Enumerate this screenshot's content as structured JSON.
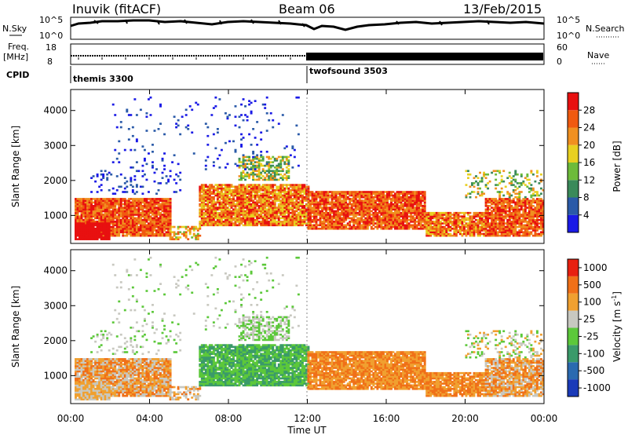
{
  "header": {
    "station": "Inuvik (fitACF)",
    "beam": "Beam 06",
    "date": "13/Feb/2015"
  },
  "strips": {
    "nsky_label": "N.Sky",
    "nsky_ticks": [
      "10^5",
      "10^0"
    ],
    "nsearch_label": "N.Search",
    "nsearch_ticks": [
      "10^5",
      "10^0"
    ],
    "freq_label": "Freq.",
    "freq_unit": "[MHz]",
    "freq_ticks": [
      "18",
      "8"
    ],
    "nave_label": "Nave",
    "nave_ticks": [
      "60",
      "0"
    ],
    "cpid_label": "CPID",
    "cpid_segments": [
      {
        "name": "themis 3300",
        "start_hour": 0
      },
      {
        "name": "twofsound 3503",
        "start_hour": 12
      }
    ]
  },
  "chart_data": [
    {
      "type": "heatmap",
      "title": "",
      "ylabel": "Slant Range [km]",
      "xlabel": "",
      "xlim_hours": [
        0,
        24
      ],
      "ylim": [
        200,
        4600
      ],
      "yticks": [
        "1000",
        "2000",
        "3000",
        "4000"
      ],
      "colorbar": {
        "label": "Power [dB]",
        "ticks": [
          "4",
          "8",
          "12",
          "16",
          "20",
          "24",
          "28"
        ],
        "colors": [
          "#1a1ae6",
          "#2a5aa8",
          "#3a8a5a",
          "#6dbb3a",
          "#e8d020",
          "#f09020",
          "#f05a10",
          "#e81010"
        ]
      }
    },
    {
      "type": "heatmap",
      "title": "",
      "ylabel": "Slant Range [km]",
      "xlabel": "Time UT",
      "xlim_hours": [
        0,
        24
      ],
      "ylim": [
        200,
        4600
      ],
      "yticks": [
        "1000",
        "2000",
        "3000",
        "4000"
      ],
      "xticks": [
        "00:00",
        "04:00",
        "08:00",
        "12:00",
        "16:00",
        "20:00",
        "00:00"
      ],
      "colorbar": {
        "label": "Velocity [m s^-1]",
        "label_main": "Velocity",
        "label_unit": "[m s",
        "label_exp": "-1",
        "label_close": "]",
        "ticks": [
          "1000",
          "500",
          "100",
          "25",
          "-25",
          "-100",
          "-500",
          "-1000"
        ],
        "colors": [
          "#1a3ab8",
          "#2a6ab0",
          "#3a9a6a",
          "#5cc83a",
          "#c8c8c0",
          "#f0a030",
          "#f07018",
          "#e82010"
        ]
      }
    }
  ]
}
